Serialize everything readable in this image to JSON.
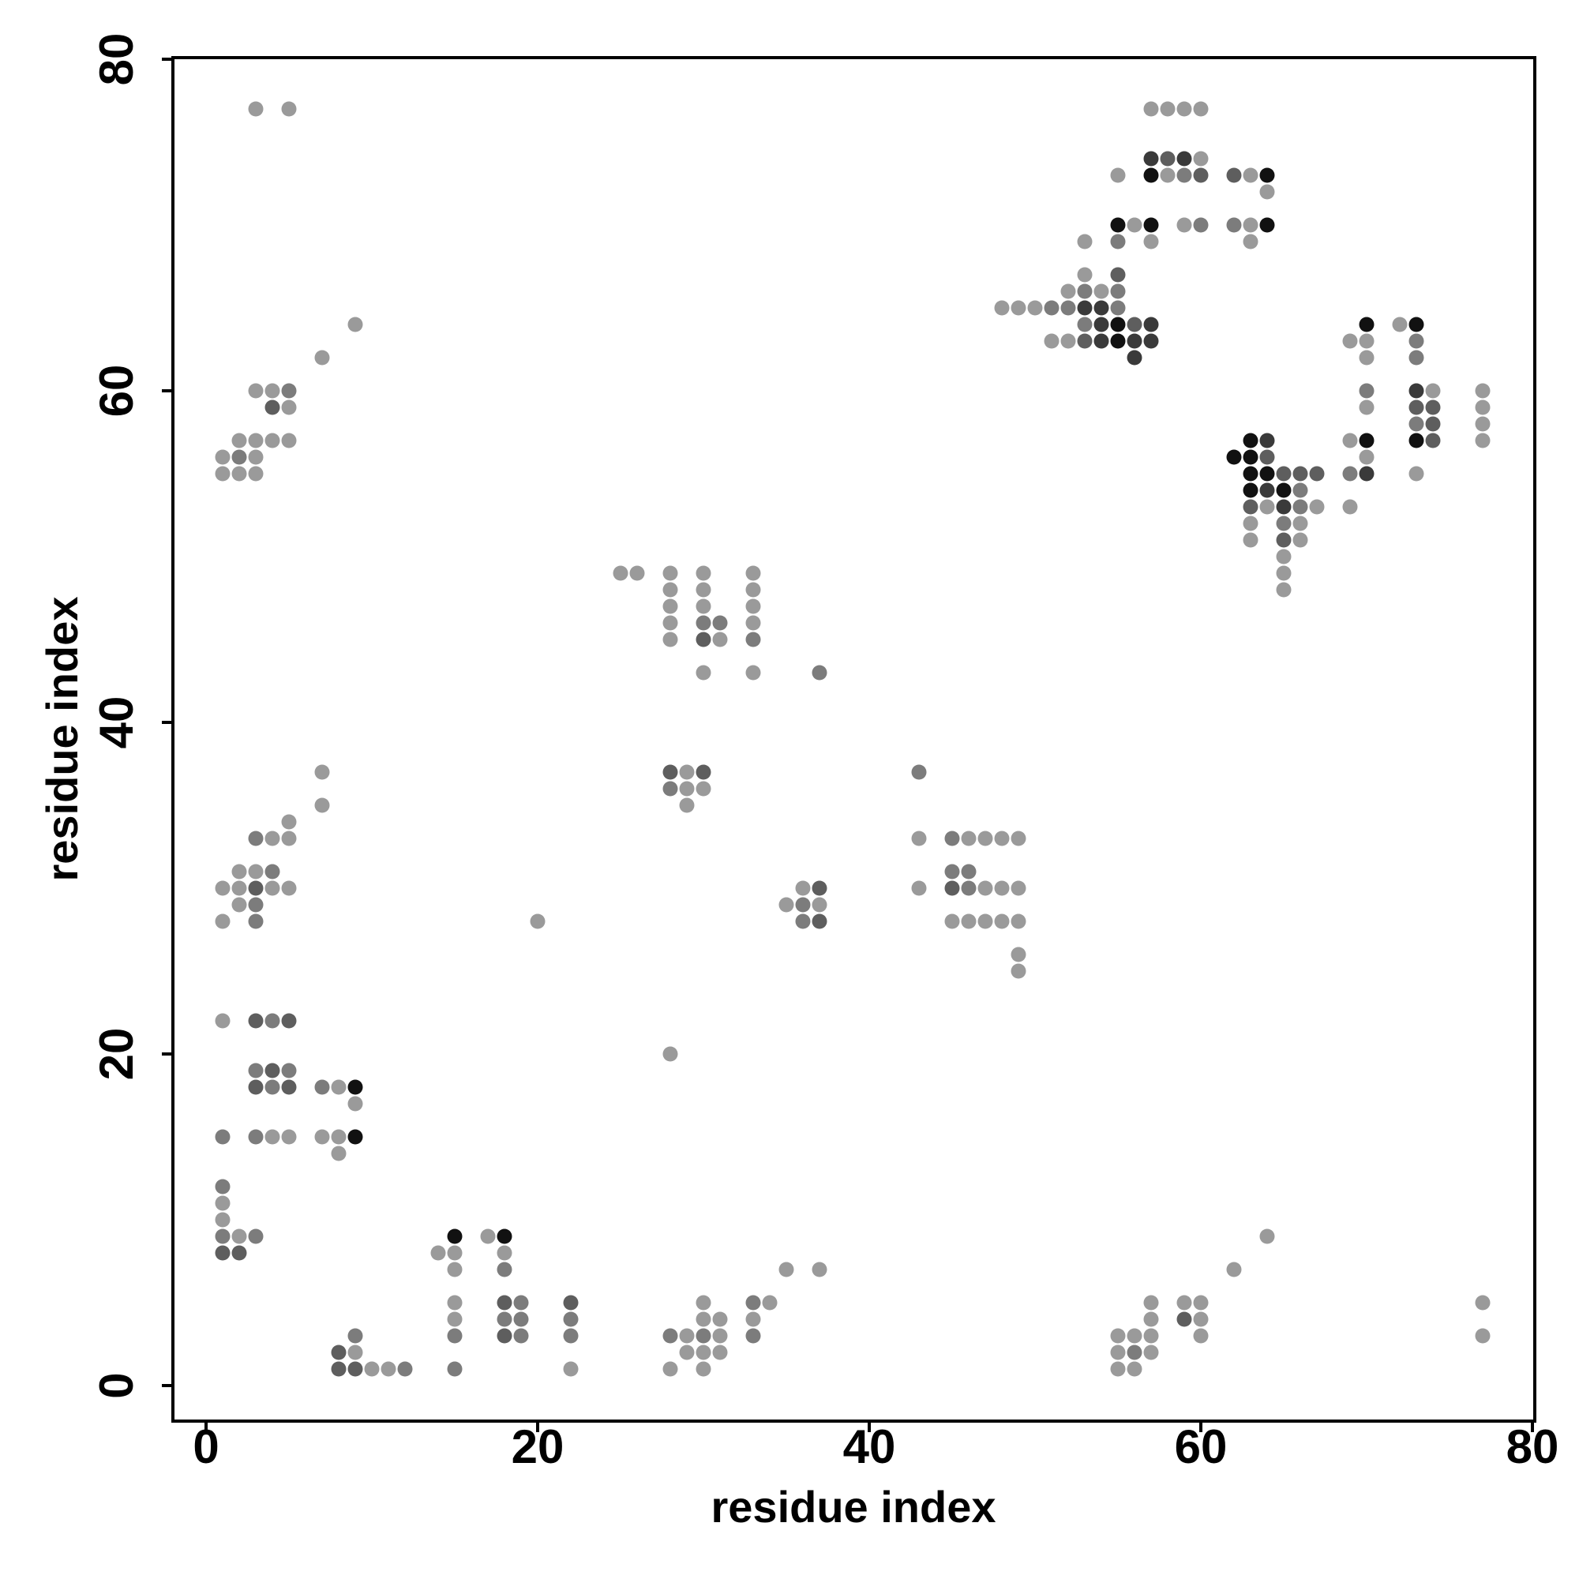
{
  "chart_data": {
    "type": "scatter",
    "title": "",
    "xlabel": "residue index",
    "ylabel": "residue index",
    "xlim": [
      -2,
      80
    ],
    "ylim": [
      -2,
      80
    ],
    "xticks": [
      0,
      20,
      40,
      60,
      80
    ],
    "yticks": [
      0,
      20,
      40,
      60,
      80
    ],
    "xtick_labels": [
      "0",
      "20",
      "40",
      "60",
      "80"
    ],
    "ytick_labels": [
      "0",
      "20",
      "40",
      "60",
      "80"
    ],
    "grid": false,
    "legend": "none",
    "marker": "filled-circle",
    "color_scale": "grayscale (darker = stronger)",
    "shade_colors": {
      "1": "#9a9a9a",
      "2": "#7c7c7c",
      "3": "#5e5e5e",
      "4": "#3a3a3a",
      "5": "#111111"
    },
    "points": [
      [
        3,
        77,
        1
      ],
      [
        5,
        77,
        1
      ],
      [
        9,
        64,
        1
      ],
      [
        7,
        62,
        1
      ],
      [
        3,
        60,
        1
      ],
      [
        4,
        60,
        1
      ],
      [
        5,
        60,
        2
      ],
      [
        4,
        59,
        3
      ],
      [
        5,
        59,
        1
      ],
      [
        2,
        57,
        1
      ],
      [
        3,
        57,
        1
      ],
      [
        4,
        57,
        1
      ],
      [
        5,
        57,
        1
      ],
      [
        1,
        56,
        1
      ],
      [
        2,
        56,
        2
      ],
      [
        3,
        56,
        1
      ],
      [
        1,
        55,
        1
      ],
      [
        2,
        55,
        1
      ],
      [
        3,
        55,
        1
      ],
      [
        7,
        37,
        1
      ],
      [
        7,
        35,
        1
      ],
      [
        5,
        34,
        1
      ],
      [
        3,
        33,
        2
      ],
      [
        4,
        33,
        1
      ],
      [
        5,
        33,
        1
      ],
      [
        2,
        31,
        1
      ],
      [
        3,
        31,
        1
      ],
      [
        4,
        31,
        2
      ],
      [
        1,
        30,
        1
      ],
      [
        2,
        30,
        1
      ],
      [
        3,
        30,
        3
      ],
      [
        4,
        30,
        1
      ],
      [
        5,
        30,
        1
      ],
      [
        2,
        29,
        1
      ],
      [
        3,
        29,
        2
      ],
      [
        1,
        28,
        1
      ],
      [
        3,
        28,
        2
      ],
      [
        1,
        22,
        1
      ],
      [
        3,
        22,
        3
      ],
      [
        4,
        22,
        2
      ],
      [
        5,
        22,
        3
      ],
      [
        3,
        19,
        2
      ],
      [
        4,
        19,
        3
      ],
      [
        5,
        19,
        2
      ],
      [
        3,
        18,
        3
      ],
      [
        4,
        18,
        2
      ],
      [
        5,
        18,
        3
      ],
      [
        7,
        18,
        2
      ],
      [
        8,
        18,
        1
      ],
      [
        9,
        18,
        5
      ],
      [
        9,
        17,
        1
      ],
      [
        1,
        15,
        2
      ],
      [
        3,
        15,
        2
      ],
      [
        4,
        15,
        1
      ],
      [
        5,
        15,
        1
      ],
      [
        7,
        15,
        1
      ],
      [
        8,
        15,
        1
      ],
      [
        9,
        15,
        5
      ],
      [
        8,
        14,
        1
      ],
      [
        1,
        12,
        2
      ],
      [
        1,
        11,
        1
      ],
      [
        1,
        10,
        1
      ],
      [
        1,
        9,
        2
      ],
      [
        2,
        9,
        1
      ],
      [
        3,
        9,
        2
      ],
      [
        1,
        8,
        3
      ],
      [
        2,
        8,
        3
      ],
      [
        14,
        8,
        1
      ],
      [
        15,
        8,
        1
      ],
      [
        15,
        9,
        5
      ],
      [
        15,
        7,
        1
      ],
      [
        15,
        5,
        1
      ],
      [
        15,
        4,
        1
      ],
      [
        15,
        3,
        2
      ],
      [
        15,
        1,
        2
      ],
      [
        17,
        9,
        1
      ],
      [
        18,
        9,
        5
      ],
      [
        18,
        8,
        1
      ],
      [
        18,
        7,
        2
      ],
      [
        18,
        5,
        3
      ],
      [
        19,
        5,
        2
      ],
      [
        18,
        4,
        2
      ],
      [
        19,
        4,
        2
      ],
      [
        18,
        3,
        3
      ],
      [
        19,
        3,
        2
      ],
      [
        22,
        5,
        3
      ],
      [
        22,
        4,
        2
      ],
      [
        22,
        3,
        2
      ],
      [
        22,
        1,
        1
      ],
      [
        8,
        2,
        3
      ],
      [
        9,
        2,
        1
      ],
      [
        9,
        3,
        2
      ],
      [
        8,
        1,
        3
      ],
      [
        9,
        1,
        3
      ],
      [
        10,
        1,
        1
      ],
      [
        11,
        1,
        1
      ],
      [
        12,
        1,
        2
      ],
      [
        28,
        3,
        2
      ],
      [
        29,
        3,
        1
      ],
      [
        30,
        3,
        2
      ],
      [
        31,
        3,
        1
      ],
      [
        30,
        5,
        1
      ],
      [
        30,
        4,
        1
      ],
      [
        31,
        4,
        1
      ],
      [
        29,
        2,
        1
      ],
      [
        30,
        2,
        1
      ],
      [
        31,
        2,
        1
      ],
      [
        28,
        1,
        1
      ],
      [
        30,
        1,
        1
      ],
      [
        33,
        5,
        2
      ],
      [
        34,
        5,
        1
      ],
      [
        33,
        4,
        1
      ],
      [
        33,
        3,
        2
      ],
      [
        35,
        7,
        1
      ],
      [
        37,
        7,
        1
      ],
      [
        25,
        49,
        1
      ],
      [
        26,
        49,
        1
      ],
      [
        28,
        49,
        1
      ],
      [
        30,
        49,
        1
      ],
      [
        33,
        49,
        1
      ],
      [
        28,
        48,
        1
      ],
      [
        30,
        48,
        1
      ],
      [
        33,
        48,
        1
      ],
      [
        28,
        47,
        1
      ],
      [
        30,
        47,
        1
      ],
      [
        33,
        47,
        1
      ],
      [
        28,
        46,
        1
      ],
      [
        30,
        46,
        2
      ],
      [
        31,
        46,
        2
      ],
      [
        33,
        46,
        1
      ],
      [
        28,
        45,
        1
      ],
      [
        30,
        45,
        3
      ],
      [
        31,
        45,
        1
      ],
      [
        33,
        45,
        2
      ],
      [
        30,
        43,
        1
      ],
      [
        33,
        43,
        1
      ],
      [
        37,
        43,
        2
      ],
      [
        28,
        37,
        3
      ],
      [
        29,
        37,
        1
      ],
      [
        30,
        37,
        3
      ],
      [
        28,
        36,
        2
      ],
      [
        29,
        36,
        1
      ],
      [
        30,
        36,
        1
      ],
      [
        29,
        35,
        1
      ],
      [
        28,
        20,
        1
      ],
      [
        20,
        28,
        1
      ],
      [
        36,
        30,
        1
      ],
      [
        37,
        30,
        3
      ],
      [
        35,
        29,
        1
      ],
      [
        36,
        29,
        2
      ],
      [
        37,
        29,
        1
      ],
      [
        36,
        28,
        2
      ],
      [
        37,
        28,
        3
      ],
      [
        43,
        37,
        2
      ],
      [
        43,
        33,
        1
      ],
      [
        43,
        30,
        1
      ],
      [
        45,
        33,
        2
      ],
      [
        46,
        33,
        1
      ],
      [
        47,
        33,
        1
      ],
      [
        48,
        33,
        1
      ],
      [
        49,
        33,
        1
      ],
      [
        45,
        31,
        2
      ],
      [
        46,
        31,
        2
      ],
      [
        45,
        30,
        3
      ],
      [
        46,
        30,
        2
      ],
      [
        47,
        30,
        1
      ],
      [
        48,
        30,
        1
      ],
      [
        49,
        30,
        1
      ],
      [
        45,
        28,
        1
      ],
      [
        46,
        28,
        1
      ],
      [
        47,
        28,
        1
      ],
      [
        48,
        28,
        1
      ],
      [
        49,
        28,
        1
      ],
      [
        49,
        26,
        1
      ],
      [
        49,
        25,
        1
      ],
      [
        57,
        77,
        1
      ],
      [
        58,
        77,
        1
      ],
      [
        59,
        77,
        1
      ],
      [
        60,
        77,
        1
      ],
      [
        57,
        74,
        4
      ],
      [
        58,
        74,
        3
      ],
      [
        59,
        74,
        4
      ],
      [
        60,
        74,
        1
      ],
      [
        55,
        73,
        1
      ],
      [
        57,
        73,
        5
      ],
      [
        58,
        73,
        1
      ],
      [
        59,
        73,
        2
      ],
      [
        60,
        73,
        3
      ],
      [
        62,
        73,
        3
      ],
      [
        63,
        73,
        1
      ],
      [
        64,
        73,
        5
      ],
      [
        64,
        72,
        1
      ],
      [
        55,
        70,
        5
      ],
      [
        56,
        70,
        1
      ],
      [
        57,
        70,
        5
      ],
      [
        59,
        70,
        1
      ],
      [
        60,
        70,
        2
      ],
      [
        62,
        70,
        2
      ],
      [
        63,
        70,
        1
      ],
      [
        64,
        70,
        5
      ],
      [
        53,
        69,
        1
      ],
      [
        55,
        69,
        2
      ],
      [
        57,
        69,
        1
      ],
      [
        63,
        69,
        1
      ],
      [
        53,
        67,
        1
      ],
      [
        55,
        67,
        3
      ],
      [
        52,
        66,
        1
      ],
      [
        53,
        66,
        2
      ],
      [
        54,
        66,
        1
      ],
      [
        55,
        66,
        2
      ],
      [
        48,
        65,
        1
      ],
      [
        49,
        65,
        1
      ],
      [
        50,
        65,
        1
      ],
      [
        51,
        65,
        2
      ],
      [
        52,
        65,
        2
      ],
      [
        53,
        65,
        4
      ],
      [
        54,
        65,
        4
      ],
      [
        55,
        65,
        2
      ],
      [
        53,
        64,
        2
      ],
      [
        54,
        64,
        4
      ],
      [
        55,
        64,
        5
      ],
      [
        56,
        64,
        3
      ],
      [
        57,
        64,
        4
      ],
      [
        51,
        63,
        1
      ],
      [
        52,
        63,
        1
      ],
      [
        53,
        63,
        3
      ],
      [
        54,
        63,
        4
      ],
      [
        55,
        63,
        5
      ],
      [
        56,
        63,
        4
      ],
      [
        57,
        63,
        4
      ],
      [
        56,
        62,
        4
      ],
      [
        70,
        64,
        5
      ],
      [
        72,
        64,
        1
      ],
      [
        73,
        64,
        5
      ],
      [
        69,
        63,
        1
      ],
      [
        70,
        63,
        1
      ],
      [
        73,
        63,
        2
      ],
      [
        70,
        62,
        1
      ],
      [
        73,
        62,
        2
      ],
      [
        70,
        60,
        2
      ],
      [
        73,
        60,
        4
      ],
      [
        74,
        60,
        1
      ],
      [
        77,
        60,
        1
      ],
      [
        70,
        59,
        1
      ],
      [
        73,
        59,
        3
      ],
      [
        74,
        59,
        3
      ],
      [
        77,
        59,
        1
      ],
      [
        73,
        58,
        2
      ],
      [
        74,
        58,
        3
      ],
      [
        77,
        58,
        1
      ],
      [
        69,
        57,
        1
      ],
      [
        70,
        57,
        5
      ],
      [
        73,
        57,
        5
      ],
      [
        74,
        57,
        3
      ],
      [
        77,
        57,
        1
      ],
      [
        70,
        56,
        1
      ],
      [
        69,
        55,
        2
      ],
      [
        70,
        55,
        4
      ],
      [
        73,
        55,
        1
      ],
      [
        69,
        53,
        1
      ],
      [
        62,
        56,
        5
      ],
      [
        63,
        57,
        5
      ],
      [
        64,
        57,
        4
      ],
      [
        63,
        56,
        5
      ],
      [
        64,
        56,
        3
      ],
      [
        63,
        55,
        5
      ],
      [
        64,
        55,
        5
      ],
      [
        65,
        55,
        3
      ],
      [
        66,
        55,
        3
      ],
      [
        67,
        55,
        3
      ],
      [
        63,
        54,
        5
      ],
      [
        64,
        54,
        4
      ],
      [
        65,
        54,
        5
      ],
      [
        66,
        54,
        2
      ],
      [
        63,
        53,
        3
      ],
      [
        64,
        53,
        1
      ],
      [
        65,
        53,
        4
      ],
      [
        66,
        53,
        2
      ],
      [
        67,
        53,
        1
      ],
      [
        63,
        52,
        1
      ],
      [
        65,
        52,
        2
      ],
      [
        66,
        52,
        1
      ],
      [
        63,
        51,
        1
      ],
      [
        65,
        51,
        3
      ],
      [
        66,
        51,
        1
      ],
      [
        65,
        50,
        1
      ],
      [
        65,
        49,
        1
      ],
      [
        65,
        48,
        1
      ],
      [
        57,
        5,
        1
      ],
      [
        59,
        5,
        1
      ],
      [
        60,
        5,
        1
      ],
      [
        57,
        4,
        1
      ],
      [
        59,
        4,
        3
      ],
      [
        60,
        4,
        1
      ],
      [
        55,
        3,
        1
      ],
      [
        56,
        3,
        1
      ],
      [
        57,
        3,
        1
      ],
      [
        60,
        3,
        1
      ],
      [
        55,
        2,
        1
      ],
      [
        56,
        2,
        2
      ],
      [
        57,
        2,
        1
      ],
      [
        55,
        1,
        1
      ],
      [
        56,
        1,
        1
      ],
      [
        62,
        7,
        1
      ],
      [
        64,
        9,
        1
      ],
      [
        77,
        5,
        1
      ],
      [
        77,
        3,
        1
      ]
    ]
  }
}
